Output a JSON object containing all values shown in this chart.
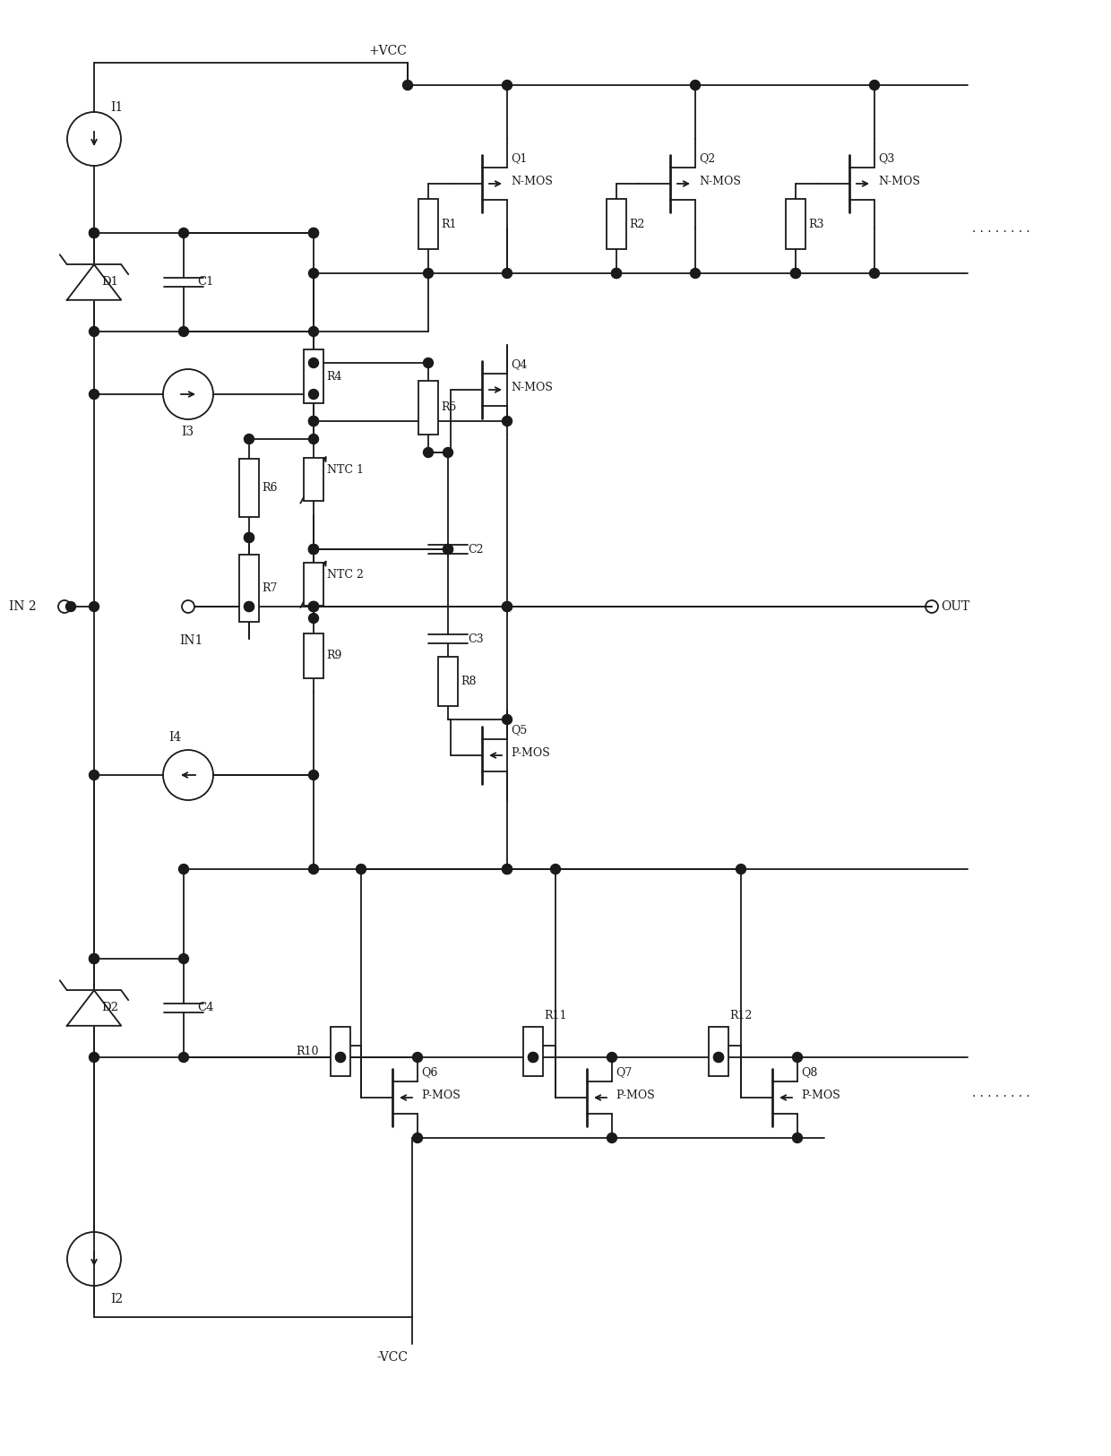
{
  "bg_color": "#ffffff",
  "line_color": "#1a1a1a",
  "lw": 1.3,
  "figsize": [
    12.4,
    16.25
  ],
  "dpi": 100,
  "labels": {
    "vcc_plus": "+VCC",
    "vcc_minus": "-VCC",
    "i1": "I1",
    "i2": "I2",
    "i3": "I3",
    "i4": "I4",
    "d1": "D1",
    "d2": "D2",
    "c1": "C1",
    "c2": "C2",
    "c3": "C3",
    "c4": "C4",
    "r1": "R1",
    "r2": "R2",
    "r3": "R3",
    "r4": "R4",
    "r5": "R5",
    "r6": "R6",
    "r7": "R7",
    "r8": "R8",
    "r9": "R9",
    "r10": "R10",
    "r11": "R11",
    "r12": "R12",
    "ntc1": "NTC 1",
    "ntc2": "NTC 2",
    "q1": "Q1",
    "q2": "Q2",
    "q3": "Q3",
    "q4": "Q4",
    "q5": "Q5",
    "q6": "Q6",
    "q7": "Q7",
    "q8": "Q8",
    "nmos": "N-MOS",
    "pmos": "P-MOS",
    "in1": "IN1",
    "in2": "IN 2",
    "out": "OUT",
    "dots": ". . . . . . . ."
  }
}
